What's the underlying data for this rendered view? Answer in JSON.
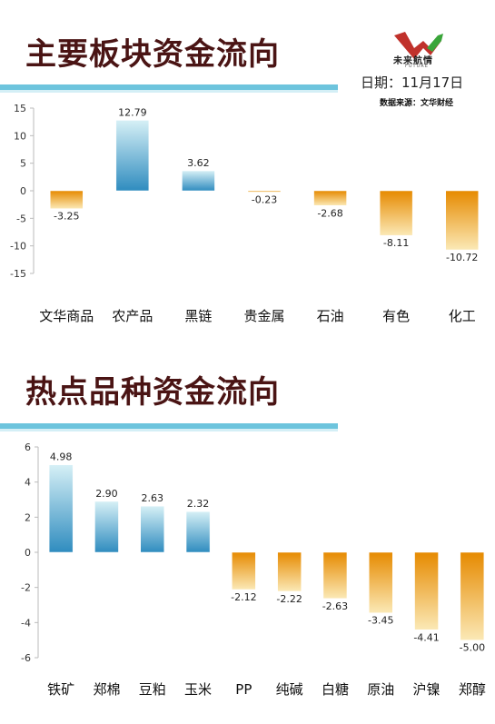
{
  "header": {
    "title1": "主要板块资金流向",
    "title2": "热点品种资金流向",
    "date": "日期：11月17日",
    "source": "数据来源：文华财经",
    "logo_text": "未来航情",
    "logo_sub": "FUTURE"
  },
  "colors": {
    "positive_top": "#d6f0f6",
    "positive_bottom": "#2f8cbf",
    "negative_top": "#e68a00",
    "negative_bottom": "#fbe9b6",
    "title": "#4a1414",
    "band": "#6dc4dd"
  },
  "chart_data": [
    {
      "type": "bar",
      "categories": [
        "文华商品",
        "农产品",
        "黑链",
        "贵金属",
        "石油",
        "有色",
        "化工"
      ],
      "values": [
        -3.25,
        12.79,
        3.62,
        -0.23,
        -2.68,
        -8.11,
        -10.72
      ],
      "data_labels": [
        "-3.25",
        "12.79",
        "3.62",
        "-0.23",
        "-2.68",
        "-8.11",
        "-10.72"
      ],
      "yticks": [
        "15",
        "10",
        "5",
        "0",
        "-5",
        "-10",
        "-15"
      ],
      "ylim": [
        -15,
        15
      ]
    },
    {
      "type": "bar",
      "categories": [
        "铁矿",
        "郑棉",
        "豆粕",
        "玉米",
        "PP",
        "纯碱",
        "白糖",
        "原油",
        "沪镍",
        "郑醇"
      ],
      "values": [
        4.98,
        2.9,
        2.63,
        2.32,
        -2.12,
        -2.22,
        -2.63,
        -3.45,
        -4.41,
        -5.0
      ],
      "data_labels": [
        "4.98",
        "2.90",
        "2.63",
        "2.32",
        "-2.12",
        "-2.22",
        "-2.63",
        "-3.45",
        "-4.41",
        "-5.00"
      ],
      "yticks": [
        "6",
        "4",
        "2",
        "0",
        "-2",
        "-4",
        "-6"
      ],
      "ylim": [
        -6,
        6
      ]
    }
  ]
}
